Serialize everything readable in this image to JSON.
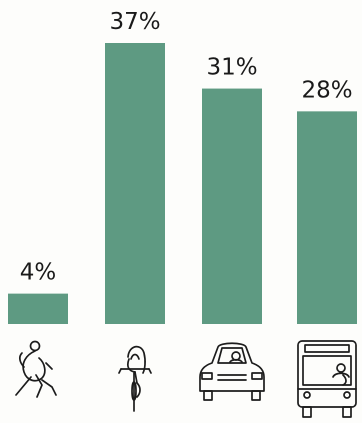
{
  "chart_data": {
    "type": "bar",
    "categories": [
      "walking",
      "cycling",
      "car",
      "bus"
    ],
    "values": [
      4,
      37,
      31,
      28
    ],
    "value_labels": [
      "4%",
      "37%",
      "31%",
      "28%"
    ],
    "icons": [
      "walking-person-icon",
      "cyclist-icon",
      "car-icon",
      "bus-icon"
    ],
    "title": "",
    "xlabel": "",
    "ylabel": "",
    "ylim": [
      0,
      37
    ],
    "grid": false,
    "legend": "none",
    "bar_color": "#5e9a82"
  }
}
